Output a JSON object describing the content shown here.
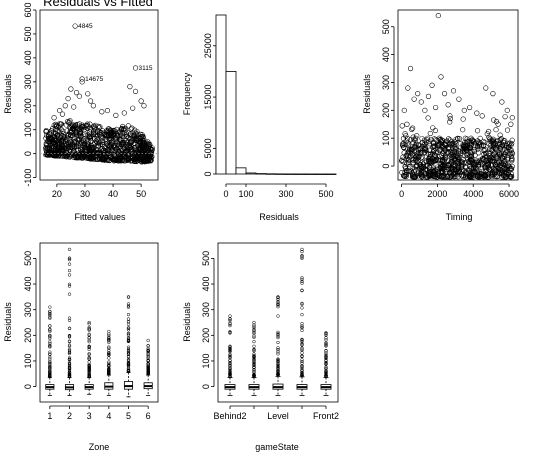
{
  "chart_data": [
    {
      "type": "scatter",
      "title": "Residuals vs Fitted",
      "xlabel": "Fitted values",
      "ylabel": "Residuals",
      "xlim": [
        14,
        56
      ],
      "ylim": [
        -110,
        600
      ],
      "xticks": [
        20,
        30,
        40,
        50
      ],
      "yticks": [
        -100,
        0,
        100,
        200,
        300,
        400,
        500,
        600
      ],
      "hline": {
        "y": 0,
        "style": "dotted",
        "color": "#999999"
      },
      "density_band": [
        [
          16,
          -5,
          100
        ],
        [
          20,
          -10,
          130
        ],
        [
          25,
          -15,
          140
        ],
        [
          30,
          -20,
          130
        ],
        [
          35,
          -25,
          115
        ],
        [
          40,
          -30,
          100
        ],
        [
          45,
          -30,
          120
        ],
        [
          50,
          -35,
          85
        ],
        [
          54,
          -30,
          25
        ]
      ],
      "outliers": [
        [
          19,
          150
        ],
        [
          21,
          180
        ],
        [
          23,
          200
        ],
        [
          24,
          230
        ],
        [
          25,
          270
        ],
        [
          27,
          255
        ],
        [
          28,
          240
        ],
        [
          29,
          300
        ],
        [
          31,
          250
        ],
        [
          33,
          200
        ],
        [
          36,
          175
        ],
        [
          38,
          180
        ],
        [
          46,
          280
        ],
        [
          48,
          260
        ],
        [
          50,
          220
        ],
        [
          51,
          200
        ],
        [
          22,
          165
        ],
        [
          26,
          195
        ],
        [
          32,
          220
        ],
        [
          47,
          190
        ],
        [
          44,
          170
        ],
        [
          41,
          160
        ]
      ],
      "annotations": [
        {
          "label": "4845",
          "x": 26.5,
          "y": 533
        },
        {
          "label": "14675",
          "x": 29,
          "y": 312
        },
        {
          "label": "3115",
          "x": 48,
          "y": 358
        }
      ]
    },
    {
      "type": "bar",
      "subtype": "histogram",
      "xlabel": "Residuals",
      "ylabel": "Frequency",
      "xlim": [
        -40,
        560
      ],
      "ylim": [
        0,
        31000
      ],
      "xticks": [
        0,
        100,
        300,
        500
      ],
      "yticks": [
        0,
        5000,
        15000,
        25000
      ],
      "bin_edges": [
        -50,
        0,
        50,
        100,
        150,
        200,
        250,
        300,
        350,
        400,
        450,
        500,
        550
      ],
      "values": [
        31000,
        20000,
        1200,
        200,
        80,
        40,
        20,
        10,
        6,
        4,
        2,
        1
      ]
    },
    {
      "type": "scatter",
      "xlabel": "Timing",
      "ylabel": "Residuals",
      "xlim": [
        -200,
        6500
      ],
      "ylim": [
        -50,
        560
      ],
      "xticks": [
        0,
        2000,
        4000,
        6000
      ],
      "yticks": [
        0,
        100,
        200,
        300,
        400,
        500
      ],
      "density_band": [
        -40,
        100
      ],
      "outliers": [
        [
          150,
          200
        ],
        [
          350,
          280
        ],
        [
          500,
          350
        ],
        [
          700,
          240
        ],
        [
          900,
          260
        ],
        [
          1100,
          230
        ],
        [
          1300,
          200
        ],
        [
          1500,
          250
        ],
        [
          1700,
          290
        ],
        [
          1900,
          210
        ],
        [
          2050,
          540
        ],
        [
          2200,
          320
        ],
        [
          2400,
          260
        ],
        [
          2600,
          220
        ],
        [
          2900,
          270
        ],
        [
          3200,
          240
        ],
        [
          3500,
          200
        ],
        [
          3800,
          210
        ],
        [
          4200,
          190
        ],
        [
          4700,
          280
        ],
        [
          5100,
          260
        ],
        [
          5600,
          230
        ],
        [
          5900,
          200
        ],
        [
          6100,
          150
        ],
        [
          300,
          150
        ],
        [
          2700,
          180
        ],
        [
          4500,
          180
        ],
        [
          5300,
          160
        ]
      ]
    },
    {
      "type": "boxplot",
      "xlabel": "Zone",
      "ylabel": "Residuals",
      "ylim": [
        -60,
        560
      ],
      "yticks": [
        0,
        100,
        200,
        300,
        400,
        500
      ],
      "categories": [
        "1",
        "2",
        "3",
        "4",
        "5",
        "6"
      ],
      "boxes": [
        {
          "min": -35,
          "q1": -10,
          "median": -2,
          "q3": 8,
          "whisker_hi": 35,
          "outlier_max": 310
        },
        {
          "min": -35,
          "q1": -12,
          "median": -3,
          "q3": 8,
          "whisker_hi": 35,
          "outlier_max": 535
        },
        {
          "min": -30,
          "q1": -10,
          "median": -2,
          "q3": 8,
          "whisker_hi": 35,
          "outlier_max": 250
        },
        {
          "min": -35,
          "q1": -10,
          "median": 0,
          "q3": 15,
          "whisker_hi": 45,
          "outlier_max": 215
        },
        {
          "min": -40,
          "q1": -10,
          "median": 2,
          "q3": 20,
          "whisker_hi": 55,
          "outlier_max": 350
        },
        {
          "min": -35,
          "q1": -8,
          "median": 2,
          "q3": 15,
          "whisker_hi": 45,
          "outlier_max": 180
        }
      ]
    },
    {
      "type": "boxplot",
      "xlabel": "gameState",
      "ylabel": "Residuals",
      "ylim": [
        -60,
        560
      ],
      "yticks": [
        0,
        100,
        200,
        300,
        400,
        500
      ],
      "categories": [
        "Behind2",
        "",
        "Level",
        "",
        "Front2"
      ],
      "boxes": [
        {
          "min": -35,
          "q1": -10,
          "median": -2,
          "q3": 8,
          "whisker_hi": 35,
          "outlier_max": 275
        },
        {
          "min": -35,
          "q1": -10,
          "median": -2,
          "q3": 8,
          "whisker_hi": 35,
          "outlier_max": 250
        },
        {
          "min": -35,
          "q1": -10,
          "median": -2,
          "q3": 10,
          "whisker_hi": 40,
          "outlier_max": 350
        },
        {
          "min": -35,
          "q1": -10,
          "median": -2,
          "q3": 8,
          "whisker_hi": 38,
          "outlier_max": 535
        },
        {
          "min": -35,
          "q1": -10,
          "median": -2,
          "q3": 8,
          "whisker_hi": 35,
          "outlier_max": 210
        }
      ]
    }
  ]
}
